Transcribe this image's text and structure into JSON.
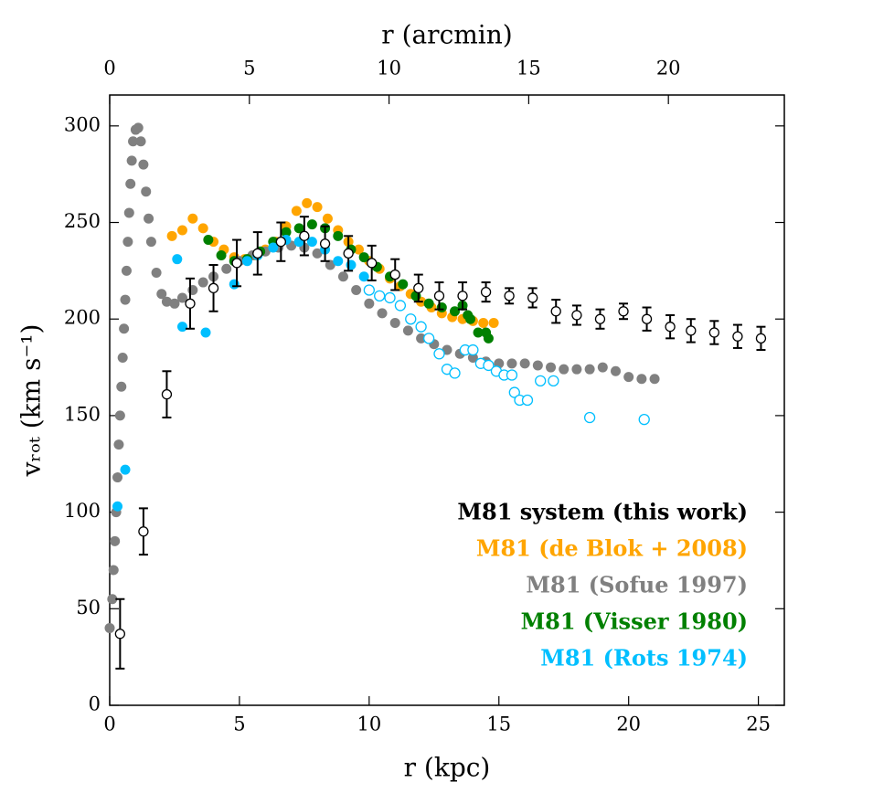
{
  "chart_data": {
    "type": "scatter",
    "xlabel": "r (kpc)",
    "x2label": "r (arcmin)",
    "ylabel": "vᵣₒₜ (km s⁻¹)",
    "xlim": [
      0,
      26
    ],
    "xticks": [
      0,
      5,
      10,
      15,
      20,
      25
    ],
    "x2lim": [
      0,
      24.15
    ],
    "x2ticks": [
      0,
      5,
      10,
      15,
      20
    ],
    "ylim": [
      0,
      316
    ],
    "yticks": [
      0,
      50,
      100,
      150,
      200,
      250,
      300
    ],
    "legend": "lower right",
    "series": [
      {
        "name": "M81 (de Blok + 2008)",
        "color": "#ffa500",
        "x": [
          2.4,
          2.8,
          3.2,
          3.6,
          4.0,
          4.4,
          4.8,
          5.2,
          5.6,
          6.0,
          6.4,
          6.8,
          7.2,
          7.6,
          8.0,
          8.4,
          8.8,
          9.2,
          9.6,
          10.0,
          10.4,
          10.8,
          11.2,
          11.6,
          12.0,
          12.4,
          12.8,
          13.2,
          13.6,
          14.0,
          14.4,
          14.8
        ],
        "values": [
          243,
          246,
          252,
          247,
          240,
          236,
          232,
          231,
          233,
          236,
          240,
          248,
          256,
          260,
          258,
          252,
          246,
          240,
          236,
          230,
          226,
          221,
          217,
          213,
          209,
          206,
          203,
          201,
          200,
          199,
          198,
          198
        ]
      },
      {
        "name": "M81 (Sofue 1997)",
        "color": "#808080",
        "x": [
          0.0,
          0.1,
          0.15,
          0.2,
          0.25,
          0.3,
          0.35,
          0.4,
          0.45,
          0.5,
          0.55,
          0.6,
          0.65,
          0.7,
          0.75,
          0.8,
          0.85,
          0.9,
          1.0,
          1.1,
          1.2,
          1.3,
          1.4,
          1.5,
          1.6,
          1.8,
          2.0,
          2.2,
          2.5,
          2.8,
          3.2,
          3.6,
          4.0,
          4.5,
          5.0,
          5.5,
          6.0,
          6.5,
          7.0,
          7.5,
          8.0,
          8.5,
          9.0,
          9.5,
          10.0,
          10.5,
          11.0,
          11.5,
          12.0,
          12.5,
          13.0,
          13.5,
          14.0,
          14.5,
          15.0,
          15.5,
          16.0,
          16.5,
          17.0,
          17.5,
          18.0,
          18.5,
          19.0,
          19.5,
          20.0,
          20.5,
          21.0
        ],
        "values": [
          40,
          55,
          70,
          85,
          100,
          118,
          135,
          150,
          165,
          180,
          195,
          210,
          225,
          240,
          255,
          270,
          282,
          292,
          298,
          299,
          292,
          280,
          266,
          252,
          240,
          224,
          213,
          209,
          208,
          211,
          215,
          219,
          222,
          226,
          230,
          233,
          235,
          237,
          238,
          237,
          234,
          228,
          222,
          215,
          208,
          203,
          198,
          194,
          190,
          187,
          184,
          182,
          180,
          178,
          177,
          177,
          177,
          176,
          175,
          174,
          174,
          174,
          175,
          173,
          170,
          169,
          169
        ]
      },
      {
        "name": "M81 (Visser 1980)",
        "color": "#008000",
        "x": [
          3.8,
          4.3,
          4.8,
          5.3,
          5.8,
          6.3,
          6.8,
          7.3,
          7.8,
          8.3,
          8.8,
          9.3,
          9.8,
          10.3,
          10.8,
          11.3,
          11.8,
          12.3,
          12.8,
          13.3,
          13.6,
          13.8,
          13.9,
          14.2,
          14.5,
          14.6
        ],
        "values": [
          241,
          233,
          230,
          231,
          235,
          240,
          245,
          247,
          249,
          247,
          243,
          236,
          232,
          227,
          222,
          218,
          212,
          208,
          206,
          204,
          207,
          202,
          200,
          193,
          193,
          190
        ]
      },
      {
        "name": "M81 (Rots 1974)",
        "color": "#00bfff",
        "x": [
          0.3,
          0.6,
          2.6,
          2.8,
          3.7,
          4.8,
          5.3,
          5.7,
          6.3,
          6.8,
          7.3,
          7.8,
          8.3,
          8.8,
          9.3,
          9.8,
          10.0,
          10.4,
          10.8,
          11.2,
          11.6,
          12.0,
          12.3,
          12.7,
          13.0,
          13.3,
          13.7,
          14.0,
          14.3,
          14.6,
          14.9,
          15.2,
          15.5,
          15.6,
          15.8,
          16.1,
          16.6,
          17.1,
          18.5,
          20.6
        ],
        "values": [
          103,
          122,
          231,
          196,
          193,
          218,
          230,
          233,
          237,
          241,
          240,
          240,
          236,
          230,
          228,
          222,
          215,
          212,
          211,
          207,
          200,
          196,
          190,
          182,
          174,
          172,
          184,
          184,
          177,
          176,
          173,
          171,
          171,
          162,
          158,
          158,
          168,
          168,
          149,
          148
        ],
        "open": [
          false,
          false,
          false,
          false,
          false,
          false,
          false,
          false,
          false,
          false,
          false,
          false,
          false,
          false,
          false,
          false,
          true,
          true,
          true,
          true,
          true,
          true,
          true,
          true,
          true,
          true,
          true,
          true,
          true,
          true,
          true,
          true,
          true,
          true,
          true,
          true,
          true,
          true,
          true,
          true
        ]
      },
      {
        "name": "M81 system (this work)",
        "color": "#000000",
        "x": [
          0.4,
          1.3,
          2.2,
          3.1,
          4.0,
          4.9,
          5.7,
          6.6,
          7.5,
          8.3,
          9.2,
          10.1,
          11.0,
          11.9,
          12.7,
          13.6,
          14.5,
          15.4,
          16.3,
          17.2,
          18.0,
          18.9,
          19.8,
          20.7,
          21.6,
          22.4,
          23.3,
          24.2,
          25.1
        ],
        "values": [
          37,
          90,
          161,
          208,
          216,
          229,
          234,
          240,
          243,
          239,
          234,
          229,
          223,
          216,
          212,
          212,
          214,
          212,
          211,
          204,
          202,
          200,
          204,
          200,
          196,
          194,
          193,
          191,
          190
        ],
        "errors": [
          18,
          12,
          12,
          13,
          12,
          12,
          11,
          10,
          10,
          9,
          9,
          9,
          8,
          7,
          7,
          7,
          5,
          4,
          5,
          6,
          5,
          5,
          4,
          6,
          6,
          6,
          6,
          6,
          6
        ]
      }
    ]
  }
}
